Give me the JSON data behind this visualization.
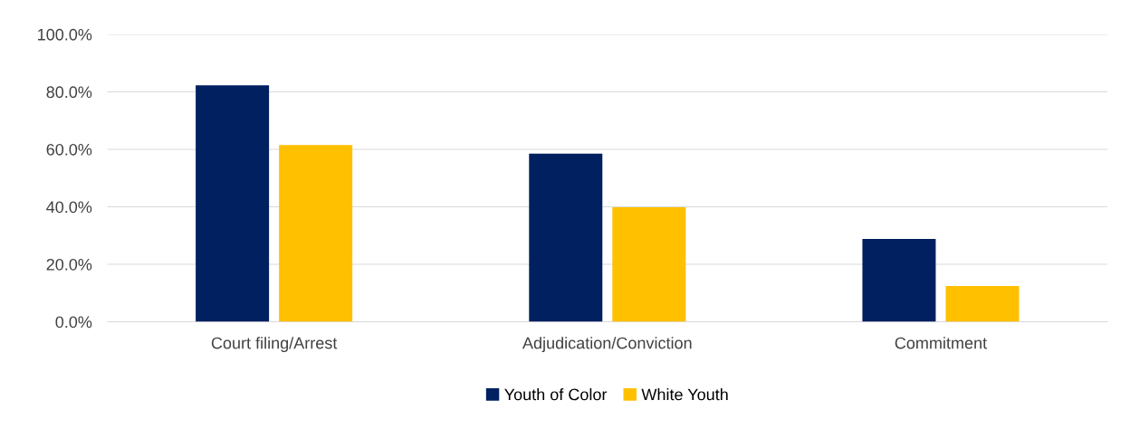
{
  "chart_data": {
    "type": "bar",
    "categories": [
      "Court filing/Arrest",
      "Adjudication/Conviction",
      "Commitment"
    ],
    "series": [
      {
        "name": "Youth of Color",
        "color": "#002060",
        "values": [
          82.3,
          58.5,
          28.8
        ]
      },
      {
        "name": "White Youth",
        "color": "#ffc000",
        "values": [
          61.5,
          39.8,
          12.4
        ]
      }
    ],
    "ylim": [
      0,
      100
    ],
    "yticks": [
      {
        "value": 0,
        "label": "0.0%"
      },
      {
        "value": 20,
        "label": "20.0%"
      },
      {
        "value": 40,
        "label": "40.0%"
      },
      {
        "value": 60,
        "label": "60.0%"
      },
      {
        "value": 80,
        "label": "80.0%"
      },
      {
        "value": 100,
        "label": "100.0%"
      }
    ],
    "grid": "y",
    "legend": "bottom"
  }
}
